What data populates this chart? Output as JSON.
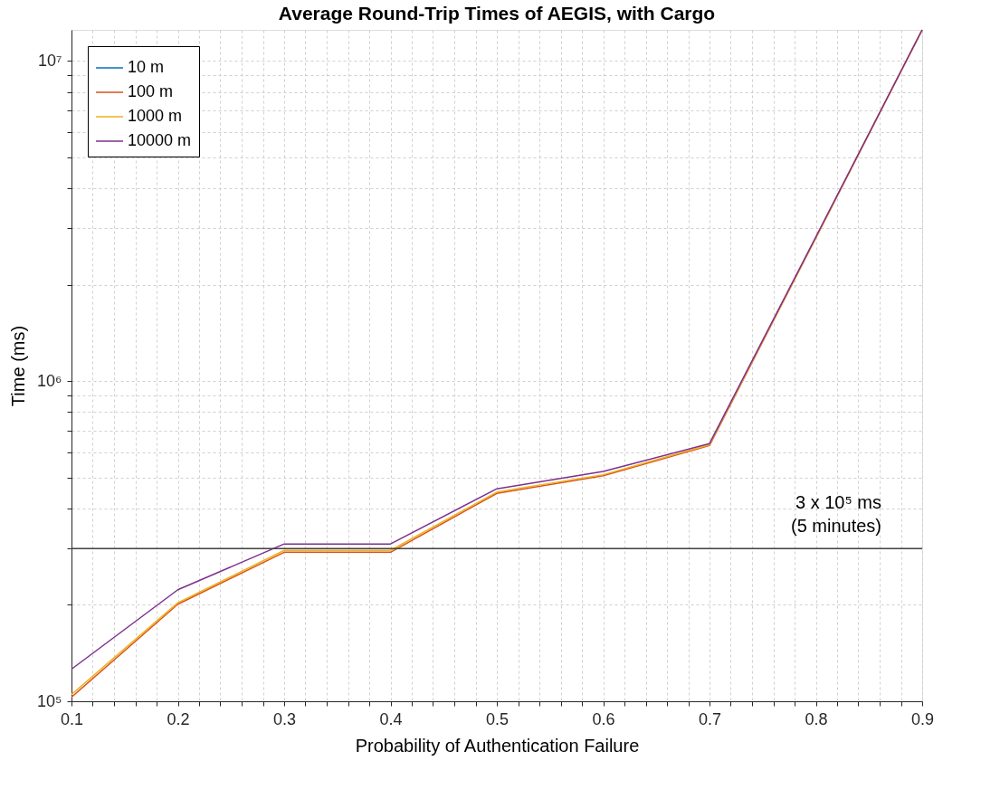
{
  "chart_data": {
    "type": "line",
    "title": "Average Round-Trip Times of AEGIS, with Cargo",
    "xlabel": "Probability of Authentication Failure",
    "ylabel": "Time (ms)",
    "x": [
      0.1,
      0.2,
      0.3,
      0.4,
      0.5,
      0.6,
      0.7,
      0.8,
      0.9
    ],
    "series": [
      {
        "name": "10 m",
        "color": "#0072bd",
        "values": [
          null,
          null,
          null,
          null,
          null,
          null,
          null,
          null,
          null
        ]
      },
      {
        "name": "100 m",
        "color": "#d95319",
        "values": [
          103000,
          201000,
          292000,
          292000,
          446000,
          506000,
          629000,
          2800000,
          12500000
        ]
      },
      {
        "name": "1000 m",
        "color": "#edb120",
        "values": [
          105000,
          203000,
          296000,
          296000,
          450000,
          510000,
          633000,
          2800000,
          12500000
        ]
      },
      {
        "name": "10000 m",
        "color": "#7e2f8e",
        "values": [
          126000,
          223000,
          310000,
          310000,
          461000,
          522000,
          638000,
          2820000,
          12500000
        ]
      }
    ],
    "log": "y",
    "xlim": [
      0.1,
      0.9
    ],
    "ylim": [
      100000,
      12500000
    ],
    "xticks": [
      0.1,
      {
        "value": 0.12,
        "label": null
      },
      {
        "value": 0.14,
        "label": null
      },
      {
        "value": 0.16,
        "label": null
      },
      {
        "value": 0.18,
        "label": null
      },
      0.2,
      {
        "value": 0.22,
        "label": null
      },
      {
        "value": 0.24,
        "label": null
      },
      {
        "value": 0.26,
        "label": null
      },
      {
        "value": 0.28,
        "label": null
      },
      0.3,
      {
        "value": 0.32,
        "label": null
      },
      {
        "value": 0.34,
        "label": null
      },
      {
        "value": 0.36,
        "label": null
      },
      {
        "value": 0.38,
        "label": null
      },
      0.4,
      {
        "value": 0.42,
        "label": null
      },
      {
        "value": 0.44,
        "label": null
      },
      {
        "value": 0.46,
        "label": null
      },
      {
        "value": 0.48,
        "label": null
      },
      0.5,
      {
        "value": 0.52,
        "label": null
      },
      {
        "value": 0.54,
        "label": null
      },
      {
        "value": 0.56,
        "label": null
      },
      {
        "value": 0.58,
        "label": null
      },
      0.6,
      {
        "value": 0.62,
        "label": null
      },
      {
        "value": 0.64,
        "label": null
      },
      {
        "value": 0.66,
        "label": null
      },
      {
        "value": 0.68,
        "label": null
      },
      0.7,
      {
        "value": 0.72,
        "label": null
      },
      {
        "value": 0.74,
        "label": null
      },
      {
        "value": 0.76,
        "label": null
      },
      {
        "value": 0.78,
        "label": null
      },
      0.8,
      {
        "value": 0.82,
        "label": null
      },
      {
        "value": 0.84,
        "label": null
      },
      {
        "value": 0.86,
        "label": null
      },
      {
        "value": 0.88,
        "label": null
      },
      0.9
    ],
    "yticks": [
      {
        "value": 100000,
        "label": "10⁵"
      },
      {
        "value": 200000,
        "label": null
      },
      {
        "value": 300000,
        "label": null
      },
      {
        "value": 400000,
        "label": null
      },
      {
        "value": 500000,
        "label": null
      },
      {
        "value": 600000,
        "label": null
      },
      {
        "value": 700000,
        "label": null
      },
      {
        "value": 800000,
        "label": null
      },
      {
        "value": 900000,
        "label": null
      },
      {
        "value": 1000000,
        "label": "10⁶"
      },
      {
        "value": 2000000,
        "label": null
      },
      {
        "value": 3000000,
        "label": null
      },
      {
        "value": 4000000,
        "label": null
      },
      {
        "value": 5000000,
        "label": null
      },
      {
        "value": 6000000,
        "label": null
      },
      {
        "value": 7000000,
        "label": null
      },
      {
        "value": 8000000,
        "label": null
      },
      {
        "value": 9000000,
        "label": null
      },
      {
        "value": 10000000,
        "label": "10⁷"
      }
    ],
    "ref_lines": [
      {
        "axis": "y",
        "value": 300000,
        "label": "3 x 10⁵ ms\n(5 minutes)",
        "color": "#404040"
      }
    ],
    "grid": true,
    "legend": "top left",
    "line_style": "solid",
    "marker": "none"
  }
}
